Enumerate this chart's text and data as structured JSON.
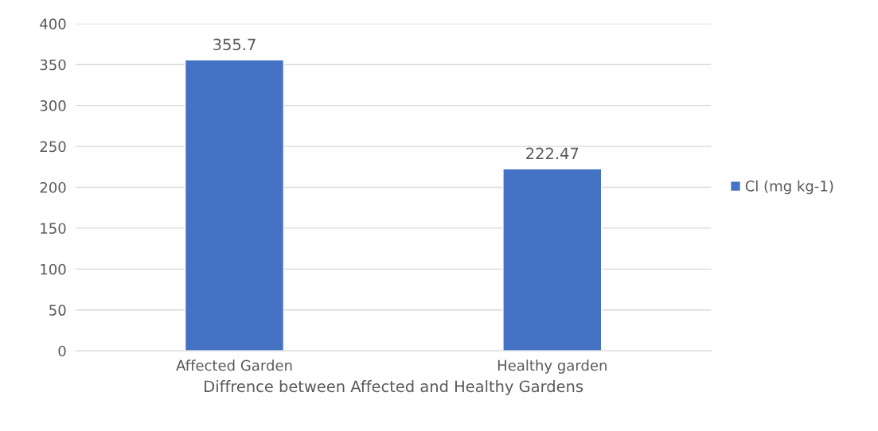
{
  "chart_data": {
    "type": "bar",
    "xlabel": "Diffrence between Affected and Healthy Gardens",
    "categories": [
      "Affected Garden",
      "Healthy garden"
    ],
    "series": [
      {
        "name": "Cl (mg kg-1)",
        "color": "#4472c4",
        "values": [
          355.7,
          222.47
        ]
      }
    ],
    "ylim": [
      0,
      400
    ],
    "yticks": [
      0,
      50,
      100,
      150,
      200,
      250,
      300,
      350,
      400
    ],
    "grid": "y",
    "legend": "right",
    "data_labels": true
  }
}
